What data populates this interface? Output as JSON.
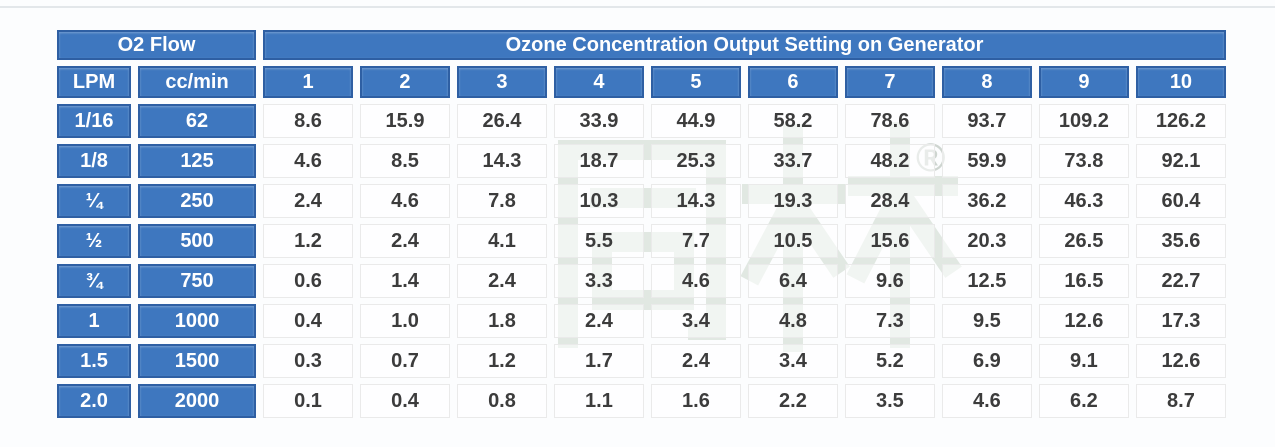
{
  "chart_data": {
    "type": "table",
    "title": "Ozone Concentration Output Setting on Generator",
    "group_header": "O2 Flow",
    "flow_unit_columns": [
      "LPM",
      "cc/min"
    ],
    "setting_columns": [
      "1",
      "2",
      "3",
      "4",
      "5",
      "6",
      "7",
      "8",
      "9",
      "10"
    ],
    "rows": [
      {
        "lpm": "1/16",
        "ccmin": "62",
        "values": [
          "8.6",
          "15.9",
          "26.4",
          "33.9",
          "44.9",
          "58.2",
          "78.6",
          "93.7",
          "109.2",
          "126.2"
        ]
      },
      {
        "lpm": "1/8",
        "ccmin": "125",
        "values": [
          "4.6",
          "8.5",
          "14.3",
          "18.7",
          "25.3",
          "33.7",
          "48.2",
          "59.9",
          "73.8",
          "92.1"
        ]
      },
      {
        "lpm": "¼",
        "ccmin": "250",
        "values": [
          "2.4",
          "4.6",
          "7.8",
          "10.3",
          "14.3",
          "19.3",
          "28.4",
          "36.2",
          "46.3",
          "60.4"
        ]
      },
      {
        "lpm": "½",
        "ccmin": "500",
        "values": [
          "1.2",
          "2.4",
          "4.1",
          "5.5",
          "7.7",
          "10.5",
          "15.6",
          "20.3",
          "26.5",
          "35.6"
        ]
      },
      {
        "lpm": "¾",
        "ccmin": "750",
        "values": [
          "0.6",
          "1.4",
          "2.4",
          "3.3",
          "4.6",
          "6.4",
          "9.6",
          "12.5",
          "16.5",
          "22.7"
        ]
      },
      {
        "lpm": "1",
        "ccmin": "1000",
        "values": [
          "0.4",
          "1.0",
          "1.8",
          "2.4",
          "3.4",
          "4.8",
          "7.3",
          "9.5",
          "12.6",
          "17.3"
        ]
      },
      {
        "lpm": "1.5",
        "ccmin": "1500",
        "values": [
          "0.3",
          "0.7",
          "1.2",
          "1.7",
          "2.4",
          "3.4",
          "5.2",
          "6.9",
          "9.1",
          "12.6"
        ]
      },
      {
        "lpm": "2.0",
        "ccmin": "2000",
        "values": [
          "0.1",
          "0.4",
          "0.8",
          "1.1",
          "1.6",
          "2.2",
          "3.5",
          "4.6",
          "6.2",
          "8.7"
        ]
      }
    ]
  },
  "watermark": {
    "text": "同林",
    "registered_mark": "®"
  },
  "colors": {
    "header_blue": "#3e77bf",
    "header_border": "#2e5fa3",
    "value_text": "#3c3c3c",
    "watermark": "#dbe4dc"
  }
}
